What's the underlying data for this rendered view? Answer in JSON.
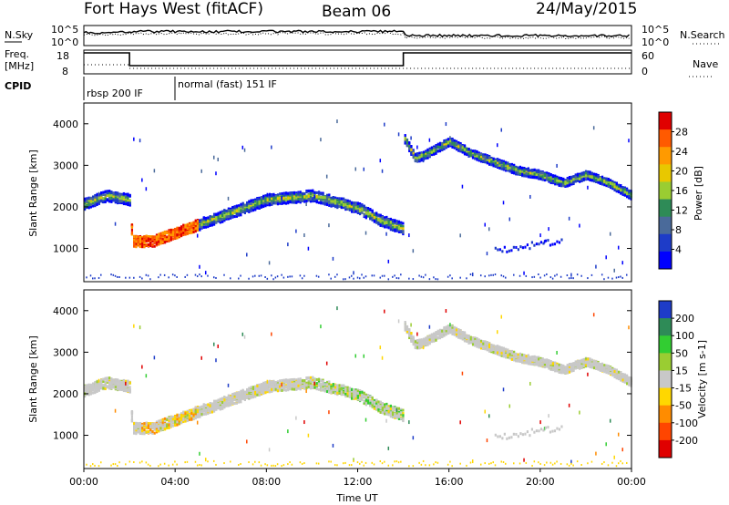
{
  "header": {
    "station": "Fort Hays West (fitACF)",
    "beam": "Beam 06",
    "date": "24/May/2015"
  },
  "top_panels": {
    "nsky_label": "N.Sky",
    "nsky_ticks": [
      "10^5",
      "10^0"
    ],
    "nsearch_label": "N.Search",
    "nsearch_ticks": [
      "10^5",
      "10^0"
    ],
    "freq_label_1": "Freq.",
    "freq_label_2": "[MHz]",
    "freq_ticks": [
      "18",
      "8"
    ],
    "nave_label": "Nave",
    "nave_ticks": [
      "60",
      "0"
    ],
    "cpid_label": "CPID",
    "cpid_segments": [
      {
        "label": "rbsp 200 IF",
        "start_hour": 0,
        "end_hour": 4
      },
      {
        "label": "normal (fast) 151 IF",
        "start_hour": 4,
        "end_hour": 24
      }
    ],
    "freq_steps": [
      {
        "start_hour": 0,
        "end_hour": 2,
        "level": "high"
      },
      {
        "start_hour": 2,
        "end_hour": 14,
        "level": "low"
      },
      {
        "start_hour": 14,
        "end_hour": 24,
        "level": "high"
      }
    ]
  },
  "chart_data": [
    {
      "type": "heatmap",
      "name": "power",
      "ylabel": "Slant Range [km]",
      "ylim": [
        200,
        4500
      ],
      "yticks": [
        "4000",
        "3000",
        "2000",
        "1000"
      ],
      "colorbar_label": "Power [dB]",
      "colorbar_ticks": [
        "28",
        "24",
        "20",
        "16",
        "12",
        "8",
        "4"
      ],
      "colorbar_colors": [
        "#e00000",
        "#ff5a00",
        "#ff9a00",
        "#e8c800",
        "#9acd32",
        "#2e8b57",
        "#4a6a9a",
        "#1e3cc8",
        "#0000ff"
      ],
      "bands": [
        {
          "hours": [
            0,
            1,
            2,
            2.1,
            3,
            4,
            6,
            8,
            10,
            12,
            13,
            14
          ],
          "ranges": [
            2100,
            2300,
            2200,
            1200,
            1200,
            1400,
            1800,
            2200,
            2300,
            2000,
            1700,
            1500
          ]
        },
        {
          "hours": [
            14,
            14.5,
            15,
            16,
            17,
            18,
            19,
            20,
            21,
            22,
            23,
            24
          ],
          "ranges": [
            3700,
            3200,
            3300,
            3600,
            3300,
            3100,
            2900,
            2800,
            2600,
            2800,
            2600,
            2300
          ]
        }
      ]
    },
    {
      "type": "heatmap",
      "name": "velocity",
      "ylabel": "Slant Range [km]",
      "ylim": [
        200,
        4500
      ],
      "yticks": [
        "4000",
        "3000",
        "2000",
        "1000"
      ],
      "colorbar_label": "Velocity [m s-1]",
      "colorbar_ticks": [
        "200",
        "100",
        "50",
        "15",
        "-15",
        "-50",
        "-100",
        "-200"
      ],
      "colorbar_colors": [
        "#1e3cc8",
        "#2e8b57",
        "#32cd32",
        "#9acd32",
        "#c8c8c8",
        "#ffd700",
        "#ff8c00",
        "#ff4500",
        "#e00000"
      ]
    }
  ],
  "x_axis": {
    "label": "Time UT",
    "ticks": [
      "00:00",
      "04:00",
      "08:00",
      "12:00",
      "16:00",
      "20:00",
      "00:00"
    ]
  }
}
